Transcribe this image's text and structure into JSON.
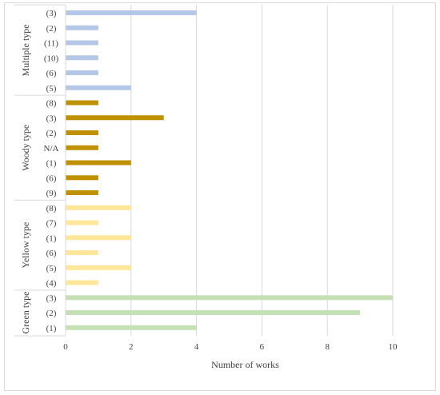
{
  "chart_data": {
    "type": "bar",
    "orientation": "horizontal",
    "title": "",
    "xlabel": "Number of works",
    "ylabel": "",
    "xlim": [
      0,
      10
    ],
    "xticks": [
      "0",
      "2",
      "4",
      "6",
      "8",
      "10"
    ],
    "grid": true,
    "legend": "none",
    "groups": [
      {
        "name": "Multiple type",
        "color": "#b4c7e7",
        "categories": [
          "(3)",
          "(2)",
          "(11)",
          "(10)",
          "(6)",
          "(5)"
        ],
        "values": [
          4,
          1,
          1,
          1,
          1,
          2
        ]
      },
      {
        "name": "Woody type",
        "color": "#bf9000",
        "categories": [
          "(8)",
          "(3)",
          "(2)",
          "N/A",
          "(1)",
          "(6)",
          "(9)"
        ],
        "values": [
          1,
          3,
          1,
          1,
          2,
          1,
          1
        ]
      },
      {
        "name": "Yellow type",
        "color": "#ffe699",
        "categories": [
          "(8)",
          "(7)",
          "(1)",
          "(6)",
          "(5)",
          "(4)"
        ],
        "values": [
          2,
          1,
          2,
          1,
          2,
          1
        ]
      },
      {
        "name": "Green type",
        "color": "#c5e0b4",
        "categories": [
          "(3)",
          "(2)",
          "(1)"
        ],
        "values": [
          10,
          9,
          4
        ]
      }
    ]
  }
}
